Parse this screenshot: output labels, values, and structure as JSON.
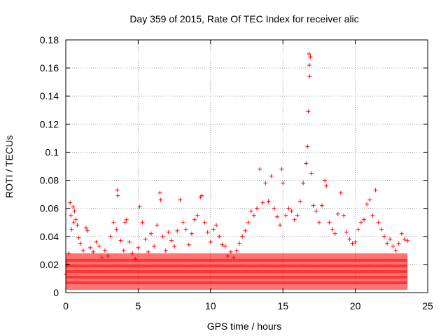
{
  "chart_data": {
    "type": "scatter",
    "title": "Day 359 of 2015, Rate Of TEC Index for receiver alic",
    "xlabel": "GPS time / hours",
    "ylabel": "ROTI / TECUs",
    "xlim": [
      0,
      25
    ],
    "ylim": [
      0,
      0.18
    ],
    "xticks": [
      0,
      5,
      10,
      15,
      20,
      25
    ],
    "xtick_labels": [
      "0",
      "5",
      "10",
      "15",
      "20",
      "25"
    ],
    "yticks": [
      0,
      0.02,
      0.04,
      0.06,
      0.08,
      0.1,
      0.12,
      0.14,
      0.16,
      0.18
    ],
    "ytick_labels": [
      "0",
      "0.02",
      "0.04",
      "0.06",
      "0.08",
      "0.1",
      "0.12",
      "0.14",
      "0.16",
      "0.18"
    ],
    "grid": true,
    "marker": "+",
    "color": "#ff0000",
    "series": [
      {
        "name": "ROTI",
        "points": [
          [
            0.0,
            0.013
          ],
          [
            0.1,
            0.02
          ],
          [
            0.2,
            0.028
          ],
          [
            0.3,
            0.064
          ],
          [
            0.35,
            0.055
          ],
          [
            0.4,
            0.045
          ],
          [
            0.5,
            0.061
          ],
          [
            0.55,
            0.05
          ],
          [
            0.6,
            0.058
          ],
          [
            0.7,
            0.052
          ],
          [
            0.8,
            0.048
          ],
          [
            0.9,
            0.039
          ],
          [
            1.0,
            0.035
          ],
          [
            1.2,
            0.03
          ],
          [
            1.4,
            0.046
          ],
          [
            1.5,
            0.044
          ],
          [
            1.7,
            0.032
          ],
          [
            1.9,
            0.029
          ],
          [
            2.1,
            0.036
          ],
          [
            2.3,
            0.033
          ],
          [
            2.5,
            0.025
          ],
          [
            2.7,
            0.03
          ],
          [
            2.9,
            0.026
          ],
          [
            3.1,
            0.04
          ],
          [
            3.3,
            0.05
          ],
          [
            3.5,
            0.045
          ],
          [
            3.55,
            0.073
          ],
          [
            3.6,
            0.069
          ],
          [
            3.8,
            0.037
          ],
          [
            4.0,
            0.03
          ],
          [
            4.1,
            0.05
          ],
          [
            4.2,
            0.052
          ],
          [
            4.4,
            0.036
          ],
          [
            4.6,
            0.028
          ],
          [
            4.8,
            0.024
          ],
          [
            5.0,
            0.032
          ],
          [
            5.1,
            0.061
          ],
          [
            5.3,
            0.05
          ],
          [
            5.5,
            0.038
          ],
          [
            5.7,
            0.029
          ],
          [
            5.9,
            0.042
          ],
          [
            6.1,
            0.033
          ],
          [
            6.3,
            0.048
          ],
          [
            6.5,
            0.071
          ],
          [
            6.55,
            0.066
          ],
          [
            6.7,
            0.04
          ],
          [
            6.9,
            0.03
          ],
          [
            7.1,
            0.043
          ],
          [
            7.3,
            0.037
          ],
          [
            7.5,
            0.033
          ],
          [
            7.7,
            0.044
          ],
          [
            7.9,
            0.066
          ],
          [
            8.1,
            0.05
          ],
          [
            8.3,
            0.045
          ],
          [
            8.5,
            0.034
          ],
          [
            8.7,
            0.042
          ],
          [
            8.9,
            0.052
          ],
          [
            9.1,
            0.055
          ],
          [
            9.3,
            0.068
          ],
          [
            9.4,
            0.069
          ],
          [
            9.6,
            0.05
          ],
          [
            9.8,
            0.043
          ],
          [
            10.0,
            0.036
          ],
          [
            10.2,
            0.045
          ],
          [
            10.4,
            0.048
          ],
          [
            10.6,
            0.04
          ],
          [
            10.8,
            0.034
          ],
          [
            11.0,
            0.033
          ],
          [
            11.2,
            0.026
          ],
          [
            11.4,
            0.029
          ],
          [
            11.6,
            0.025
          ],
          [
            11.8,
            0.03
          ],
          [
            12.0,
            0.035
          ],
          [
            12.2,
            0.04
          ],
          [
            12.4,
            0.044
          ],
          [
            12.6,
            0.05
          ],
          [
            12.8,
            0.058
          ],
          [
            13.0,
            0.055
          ],
          [
            13.2,
            0.06
          ],
          [
            13.4,
            0.088
          ],
          [
            13.6,
            0.064
          ],
          [
            13.8,
            0.078
          ],
          [
            14.0,
            0.065
          ],
          [
            14.2,
            0.083
          ],
          [
            14.4,
            0.06
          ],
          [
            14.6,
            0.054
          ],
          [
            14.8,
            0.048
          ],
          [
            14.9,
            0.088
          ],
          [
            15.0,
            0.078
          ],
          [
            15.2,
            0.055
          ],
          [
            15.4,
            0.06
          ],
          [
            15.6,
            0.058
          ],
          [
            15.8,
            0.052
          ],
          [
            16.0,
            0.055
          ],
          [
            16.2,
            0.065
          ],
          [
            16.4,
            0.078
          ],
          [
            16.6,
            0.092
          ],
          [
            16.7,
            0.104
          ],
          [
            16.75,
            0.129
          ],
          [
            16.8,
            0.17
          ],
          [
            16.82,
            0.162
          ],
          [
            16.85,
            0.154
          ],
          [
            16.9,
            0.168
          ],
          [
            16.95,
            0.085
          ],
          [
            17.1,
            0.062
          ],
          [
            17.3,
            0.058
          ],
          [
            17.5,
            0.05
          ],
          [
            17.7,
            0.062
          ],
          [
            17.9,
            0.08
          ],
          [
            18.0,
            0.076
          ],
          [
            18.2,
            0.05
          ],
          [
            18.4,
            0.045
          ],
          [
            18.6,
            0.042
          ],
          [
            18.8,
            0.056
          ],
          [
            19.0,
            0.071
          ],
          [
            19.2,
            0.055
          ],
          [
            19.4,
            0.043
          ],
          [
            19.6,
            0.038
          ],
          [
            19.8,
            0.035
          ],
          [
            20.0,
            0.036
          ],
          [
            20.2,
            0.045
          ],
          [
            20.4,
            0.05
          ],
          [
            20.6,
            0.052
          ],
          [
            20.8,
            0.063
          ],
          [
            21.0,
            0.066
          ],
          [
            21.2,
            0.055
          ],
          [
            21.4,
            0.073
          ],
          [
            21.6,
            0.05
          ],
          [
            21.8,
            0.045
          ],
          [
            22.0,
            0.04
          ],
          [
            22.2,
            0.035
          ],
          [
            22.4,
            0.038
          ],
          [
            22.6,
            0.033
          ],
          [
            22.8,
            0.03
          ],
          [
            23.0,
            0.035
          ],
          [
            23.2,
            0.042
          ],
          [
            23.4,
            0.038
          ],
          [
            23.6,
            0.037
          ]
        ]
      }
    ]
  }
}
